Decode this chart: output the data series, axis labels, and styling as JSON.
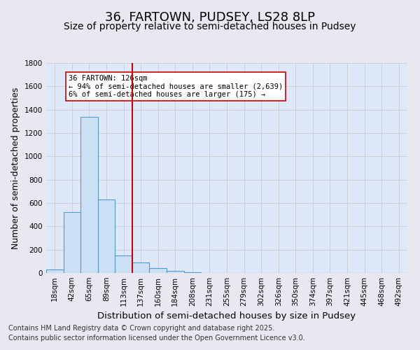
{
  "title": "36, FARTOWN, PUDSEY, LS28 8LP",
  "subtitle": "Size of property relative to semi-detached houses in Pudsey",
  "xlabel": "Distribution of semi-detached houses by size in Pudsey",
  "ylabel": "Number of semi-detached properties",
  "annotation_line1": "36 FARTOWN: 126sqm",
  "annotation_line2": "← 94% of semi-detached houses are smaller (2,639)",
  "annotation_line3": "6% of semi-detached houses are larger (175) →",
  "bin_labels": [
    "18sqm",
    "42sqm",
    "65sqm",
    "89sqm",
    "113sqm",
    "137sqm",
    "160sqm",
    "184sqm",
    "208sqm",
    "231sqm",
    "255sqm",
    "279sqm",
    "302sqm",
    "326sqm",
    "350sqm",
    "374sqm",
    "397sqm",
    "421sqm",
    "445sqm",
    "468sqm",
    "492sqm"
  ],
  "counts": [
    30,
    520,
    1340,
    630,
    150,
    90,
    40,
    20,
    5,
    0,
    0,
    0,
    0,
    0,
    0,
    0,
    0,
    0,
    0,
    0,
    0
  ],
  "bar_color": "#cce0f5",
  "bar_edge_color": "#5599cc",
  "vline_color": "#cc0000",
  "vline_x": 4.5,
  "ylim": [
    0,
    1800
  ],
  "yticks": [
    0,
    200,
    400,
    600,
    800,
    1000,
    1200,
    1400,
    1600,
    1800
  ],
  "grid_color": "#cccccc",
  "bg_color": "#e8e8f0",
  "plot_bg_color": "#dde8f8",
  "title_fontsize": 13,
  "subtitle_fontsize": 10,
  "axis_label_fontsize": 9,
  "tick_fontsize": 7.5,
  "annotation_fontsize": 7.5,
  "footer_fontsize": 7,
  "footer_line1": "Contains HM Land Registry data © Crown copyright and database right 2025.",
  "footer_line2": "Contains public sector information licensed under the Open Government Licence v3.0."
}
